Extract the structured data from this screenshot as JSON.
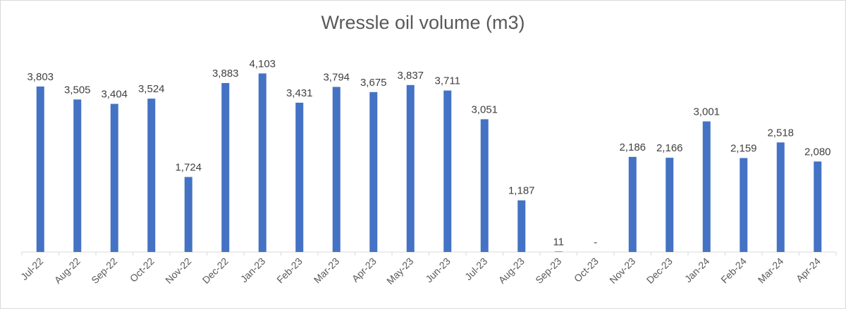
{
  "chart_data": {
    "type": "bar",
    "title": "Wressle oil volume (m3)",
    "xlabel": "",
    "ylabel": "",
    "categories": [
      "Jul-22",
      "Aug-22",
      "Sep-22",
      "Oct-22",
      "Nov-22",
      "Dec-22",
      "Jan-23",
      "Feb-23",
      "Mar-23",
      "Apr-23",
      "May-23",
      "Jun-23",
      "Jul-23",
      "Aug-23",
      "Sep-23",
      "Oct-23",
      "Nov-23",
      "Dec-23",
      "Jan-24",
      "Feb-24",
      "Mar-24",
      "Apr-24"
    ],
    "values": [
      3803,
      3505,
      3404,
      3524,
      1724,
      3883,
      4103,
      3431,
      3794,
      3675,
      3837,
      3711,
      3051,
      1187,
      11,
      0,
      2186,
      2166,
      3001,
      2159,
      2518,
      2080
    ],
    "data_labels": [
      "3,803",
      "3,505",
      "3,404",
      "3,524",
      "1,724",
      "3,883",
      "4,103",
      "3,431",
      "3,794",
      "3,675",
      "3,837",
      "3,711",
      "3,051",
      "1,187",
      "11",
      "-",
      "2,186",
      "2,166",
      "3,001",
      "2,159",
      "2,518",
      "2,080"
    ],
    "ylim": [
      0,
      4400
    ],
    "bar_color": "#4472c4",
    "gridlines": false,
    "legend": "none"
  }
}
